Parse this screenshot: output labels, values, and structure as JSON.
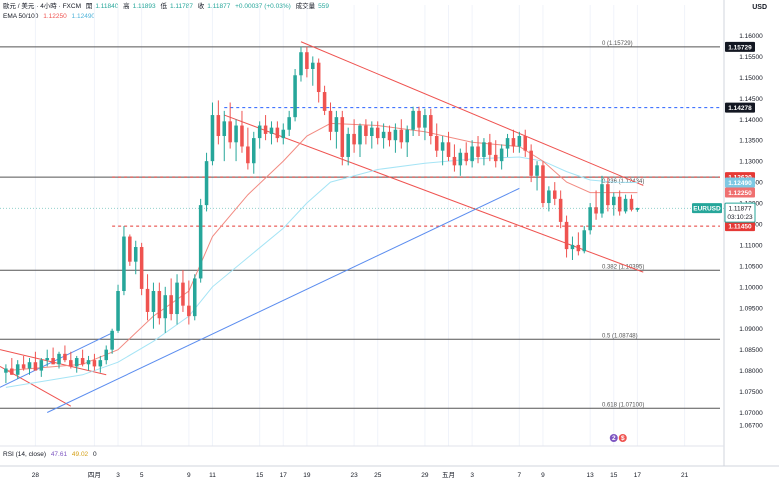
{
  "header": {
    "title": "歐元 / 美元 · 4小時 · FXCM",
    "open_label": "開",
    "open": "1.11840",
    "high_label": "高",
    "high": "1.11893",
    "low_label": "低",
    "low": "1.11787",
    "close_label": "收",
    "close": "1.11877",
    "change": "+0.00037 (+0.03%)",
    "volume_label": "成交量",
    "volume": "559",
    "ema_label": "EMA 50/100",
    "ema50": "1.12250",
    "ema100": "1.12490",
    "rsi_label": "RSI (14, close)",
    "rsi_value": "47.61",
    "rsi_ma": "49.02",
    "rsi_extra": "0",
    "currency": "USD"
  },
  "colors": {
    "up": "#26a69a",
    "down": "#ef5350",
    "ema50": "#f28b82",
    "ema100": "#a5e4f5",
    "channel": "#ef5350",
    "trend": "#5b8def",
    "blue_dash": "#2962ff",
    "red_dash": "#e53935",
    "price_badge": "#131722"
  },
  "chart_data": {
    "type": "candlestick",
    "symbol": "EURUSD",
    "timeframe": "4H",
    "ylim": [
      1.062,
      1.1625
    ],
    "y_ticks": [
      "1.16000",
      "1.15500",
      "1.15000",
      "1.14500",
      "1.14000",
      "1.13500",
      "1.13000",
      "1.12500",
      "1.12000",
      "1.11500",
      "1.11000",
      "1.10500",
      "1.10000",
      "1.09500",
      "1.09000",
      "1.08500",
      "1.08000",
      "1.07500",
      "1.07000",
      "1.06700"
    ],
    "y_tick_values": [
      1.16,
      1.155,
      1.15,
      1.145,
      1.14,
      1.135,
      1.13,
      1.125,
      1.12,
      1.115,
      1.11,
      1.105,
      1.1,
      1.095,
      1.09,
      1.085,
      1.08,
      1.075,
      1.07,
      1.067
    ],
    "x_ticks": [
      "28",
      "四月",
      "3",
      "5",
      "9",
      "11",
      "15",
      "17",
      "19",
      "23",
      "25",
      "29",
      "五月",
      "3",
      "7",
      "9",
      "13",
      "15",
      "17",
      "21"
    ],
    "x_tick_days": [
      -4,
      1,
      3,
      5,
      9,
      11,
      15,
      17,
      19,
      23,
      25,
      29,
      31,
      33,
      37,
      39,
      43,
      45,
      47,
      51
    ],
    "candles": [
      {
        "d": -6.5,
        "o": 1.0795,
        "h": 1.0815,
        "l": 1.077,
        "c": 1.0805
      },
      {
        "d": -6.0,
        "o": 1.0805,
        "h": 1.083,
        "l": 1.079,
        "c": 1.079
      },
      {
        "d": -5.5,
        "o": 1.079,
        "h": 1.0825,
        "l": 1.078,
        "c": 1.0815
      },
      {
        "d": -5.0,
        "o": 1.0815,
        "h": 1.0835,
        "l": 1.08,
        "c": 1.0805
      },
      {
        "d": -4.5,
        "o": 1.0805,
        "h": 1.083,
        "l": 1.079,
        "c": 1.082
      },
      {
        "d": -4.0,
        "o": 1.082,
        "h": 1.0845,
        "l": 1.081,
        "c": 1.08
      },
      {
        "d": -3.5,
        "o": 1.08,
        "h": 1.083,
        "l": 1.0785,
        "c": 1.0825
      },
      {
        "d": -3.0,
        "o": 1.0825,
        "h": 1.085,
        "l": 1.081,
        "c": 1.083
      },
      {
        "d": -2.5,
        "o": 1.083,
        "h": 1.0855,
        "l": 1.0815,
        "c": 1.0815
      },
      {
        "d": -2.0,
        "o": 1.0815,
        "h": 1.0845,
        "l": 1.0805,
        "c": 1.084
      },
      {
        "d": -1.5,
        "o": 1.084,
        "h": 1.086,
        "l": 1.082,
        "c": 1.0825
      },
      {
        "d": -1.0,
        "o": 1.0825,
        "h": 1.0845,
        "l": 1.0805,
        "c": 1.081
      },
      {
        "d": -0.5,
        "o": 1.081,
        "h": 1.0835,
        "l": 1.0795,
        "c": 1.083
      },
      {
        "d": 0.0,
        "o": 1.083,
        "h": 1.085,
        "l": 1.081,
        "c": 1.0815
      },
      {
        "d": 0.5,
        "o": 1.0815,
        "h": 1.0835,
        "l": 1.08,
        "c": 1.0825
      },
      {
        "d": 1.0,
        "o": 1.0825,
        "h": 1.084,
        "l": 1.08,
        "c": 1.081
      },
      {
        "d": 1.5,
        "o": 1.081,
        "h": 1.0835,
        "l": 1.0795,
        "c": 1.0825
      },
      {
        "d": 2.0,
        "o": 1.0825,
        "h": 1.086,
        "l": 1.0815,
        "c": 1.085
      },
      {
        "d": 2.5,
        "o": 1.085,
        "h": 1.09,
        "l": 1.084,
        "c": 1.0895
      },
      {
        "d": 3.0,
        "o": 1.0895,
        "h": 1.1005,
        "l": 1.089,
        "c": 1.099
      },
      {
        "d": 3.5,
        "o": 1.099,
        "h": 1.1145,
        "l": 1.098,
        "c": 1.112
      },
      {
        "d": 4.0,
        "o": 1.112,
        "h": 1.1125,
        "l": 1.105,
        "c": 1.106
      },
      {
        "d": 4.5,
        "o": 1.106,
        "h": 1.111,
        "l": 1.103,
        "c": 1.1095
      },
      {
        "d": 5.0,
        "o": 1.1095,
        "h": 1.1105,
        "l": 1.098,
        "c": 1.0995
      },
      {
        "d": 5.5,
        "o": 1.0995,
        "h": 1.103,
        "l": 1.092,
        "c": 1.094
      },
      {
        "d": 6.0,
        "o": 1.094,
        "h": 1.101,
        "l": 1.09,
        "c": 1.099
      },
      {
        "d": 6.5,
        "o": 1.099,
        "h": 1.101,
        "l": 1.091,
        "c": 1.0925
      },
      {
        "d": 7.0,
        "o": 1.0925,
        "h": 1.1,
        "l": 1.089,
        "c": 1.098
      },
      {
        "d": 7.5,
        "o": 1.098,
        "h": 1.102,
        "l": 1.092,
        "c": 1.0935
      },
      {
        "d": 8.0,
        "o": 1.0935,
        "h": 1.103,
        "l": 1.091,
        "c": 1.101
      },
      {
        "d": 8.5,
        "o": 1.101,
        "h": 1.104,
        "l": 1.094,
        "c": 1.0955
      },
      {
        "d": 9.0,
        "o": 1.0955,
        "h": 1.1015,
        "l": 1.091,
        "c": 1.093
      },
      {
        "d": 9.5,
        "o": 1.093,
        "h": 1.103,
        "l": 1.092,
        "c": 1.102
      },
      {
        "d": 10.0,
        "o": 1.102,
        "h": 1.121,
        "l": 1.101,
        "c": 1.1195
      },
      {
        "d": 10.5,
        "o": 1.1195,
        "h": 1.132,
        "l": 1.118,
        "c": 1.13
      },
      {
        "d": 11.0,
        "o": 1.13,
        "h": 1.144,
        "l": 1.129,
        "c": 1.141
      },
      {
        "d": 11.5,
        "o": 1.141,
        "h": 1.1445,
        "l": 1.134,
        "c": 1.136
      },
      {
        "d": 12.0,
        "o": 1.136,
        "h": 1.142,
        "l": 1.13,
        "c": 1.1395
      },
      {
        "d": 12.5,
        "o": 1.1395,
        "h": 1.144,
        "l": 1.133,
        "c": 1.1345
      },
      {
        "d": 13.0,
        "o": 1.1345,
        "h": 1.14,
        "l": 1.13,
        "c": 1.1385
      },
      {
        "d": 13.5,
        "o": 1.1385,
        "h": 1.142,
        "l": 1.132,
        "c": 1.1335
      },
      {
        "d": 14.0,
        "o": 1.1335,
        "h": 1.138,
        "l": 1.128,
        "c": 1.1295
      },
      {
        "d": 14.5,
        "o": 1.1295,
        "h": 1.137,
        "l": 1.127,
        "c": 1.1355
      },
      {
        "d": 15.0,
        "o": 1.1355,
        "h": 1.1395,
        "l": 1.133,
        "c": 1.1385
      },
      {
        "d": 15.5,
        "o": 1.1385,
        "h": 1.141,
        "l": 1.135,
        "c": 1.1365
      },
      {
        "d": 16.0,
        "o": 1.1365,
        "h": 1.1395,
        "l": 1.134,
        "c": 1.138
      },
      {
        "d": 16.5,
        "o": 1.138,
        "h": 1.1395,
        "l": 1.1345,
        "c": 1.1355
      },
      {
        "d": 17.0,
        "o": 1.1355,
        "h": 1.139,
        "l": 1.134,
        "c": 1.1375
      },
      {
        "d": 17.5,
        "o": 1.1375,
        "h": 1.142,
        "l": 1.136,
        "c": 1.1405
      },
      {
        "d": 18.0,
        "o": 1.1405,
        "h": 1.152,
        "l": 1.1395,
        "c": 1.1505
      },
      {
        "d": 18.5,
        "o": 1.1505,
        "h": 1.1573,
        "l": 1.149,
        "c": 1.156
      },
      {
        "d": 19.0,
        "o": 1.156,
        "h": 1.1573,
        "l": 1.15,
        "c": 1.152
      },
      {
        "d": 19.5,
        "o": 1.152,
        "h": 1.155,
        "l": 1.148,
        "c": 1.1535
      },
      {
        "d": 20.0,
        "o": 1.1535,
        "h": 1.1545,
        "l": 1.144,
        "c": 1.1465
      },
      {
        "d": 20.5,
        "o": 1.1465,
        "h": 1.148,
        "l": 1.141,
        "c": 1.142
      },
      {
        "d": 21.0,
        "o": 1.142,
        "h": 1.144,
        "l": 1.135,
        "c": 1.137
      },
      {
        "d": 21.5,
        "o": 1.137,
        "h": 1.142,
        "l": 1.133,
        "c": 1.1405
      },
      {
        "d": 22.0,
        "o": 1.1405,
        "h": 1.142,
        "l": 1.129,
        "c": 1.131
      },
      {
        "d": 22.5,
        "o": 1.131,
        "h": 1.138,
        "l": 1.129,
        "c": 1.1365
      },
      {
        "d": 23.0,
        "o": 1.1365,
        "h": 1.14,
        "l": 1.132,
        "c": 1.134
      },
      {
        "d": 23.5,
        "o": 1.134,
        "h": 1.139,
        "l": 1.131,
        "c": 1.1385
      },
      {
        "d": 24.0,
        "o": 1.1385,
        "h": 1.14,
        "l": 1.134,
        "c": 1.136
      },
      {
        "d": 24.5,
        "o": 1.136,
        "h": 1.1395,
        "l": 1.133,
        "c": 1.138
      },
      {
        "d": 25.0,
        "o": 1.138,
        "h": 1.1395,
        "l": 1.134,
        "c": 1.1355
      },
      {
        "d": 25.5,
        "o": 1.1355,
        "h": 1.139,
        "l": 1.133,
        "c": 1.137
      },
      {
        "d": 26.0,
        "o": 1.137,
        "h": 1.1385,
        "l": 1.1335,
        "c": 1.135
      },
      {
        "d": 26.5,
        "o": 1.135,
        "h": 1.139,
        "l": 1.132,
        "c": 1.1375
      },
      {
        "d": 27.0,
        "o": 1.1375,
        "h": 1.14,
        "l": 1.133,
        "c": 1.1345
      },
      {
        "d": 27.5,
        "o": 1.1345,
        "h": 1.1385,
        "l": 1.131,
        "c": 1.1375
      },
      {
        "d": 28.0,
        "o": 1.1375,
        "h": 1.143,
        "l": 1.136,
        "c": 1.142
      },
      {
        "d": 28.5,
        "o": 1.142,
        "h": 1.143,
        "l": 1.136,
        "c": 1.138
      },
      {
        "d": 29.0,
        "o": 1.138,
        "h": 1.1425,
        "l": 1.135,
        "c": 1.141
      },
      {
        "d": 29.5,
        "o": 1.141,
        "h": 1.1425,
        "l": 1.134,
        "c": 1.136
      },
      {
        "d": 30.0,
        "o": 1.136,
        "h": 1.139,
        "l": 1.131,
        "c": 1.1325
      },
      {
        "d": 30.5,
        "o": 1.1325,
        "h": 1.136,
        "l": 1.129,
        "c": 1.1345
      },
      {
        "d": 31.0,
        "o": 1.1345,
        "h": 1.137,
        "l": 1.13,
        "c": 1.131
      },
      {
        "d": 31.5,
        "o": 1.131,
        "h": 1.134,
        "l": 1.1275,
        "c": 1.129
      },
      {
        "d": 32.0,
        "o": 1.129,
        "h": 1.133,
        "l": 1.1265,
        "c": 1.132
      },
      {
        "d": 32.5,
        "o": 1.132,
        "h": 1.1345,
        "l": 1.129,
        "c": 1.13
      },
      {
        "d": 33.0,
        "o": 1.13,
        "h": 1.135,
        "l": 1.1285,
        "c": 1.1335
      },
      {
        "d": 33.5,
        "o": 1.1335,
        "h": 1.136,
        "l": 1.1295,
        "c": 1.131
      },
      {
        "d": 34.0,
        "o": 1.131,
        "h": 1.1355,
        "l": 1.129,
        "c": 1.1345
      },
      {
        "d": 34.5,
        "o": 1.1345,
        "h": 1.1365,
        "l": 1.13,
        "c": 1.1315
      },
      {
        "d": 35.0,
        "o": 1.1315,
        "h": 1.135,
        "l": 1.1285,
        "c": 1.13
      },
      {
        "d": 35.5,
        "o": 1.13,
        "h": 1.134,
        "l": 1.128,
        "c": 1.133
      },
      {
        "d": 36.0,
        "o": 1.133,
        "h": 1.1365,
        "l": 1.131,
        "c": 1.1355
      },
      {
        "d": 36.5,
        "o": 1.1355,
        "h": 1.1375,
        "l": 1.132,
        "c": 1.1335
      },
      {
        "d": 37.0,
        "o": 1.1335,
        "h": 1.137,
        "l": 1.132,
        "c": 1.136
      },
      {
        "d": 37.5,
        "o": 1.136,
        "h": 1.1375,
        "l": 1.131,
        "c": 1.1325
      },
      {
        "d": 38.0,
        "o": 1.1325,
        "h": 1.134,
        "l": 1.125,
        "c": 1.1265
      },
      {
        "d": 38.5,
        "o": 1.1265,
        "h": 1.13,
        "l": 1.123,
        "c": 1.129
      },
      {
        "d": 39.0,
        "o": 1.129,
        "h": 1.13,
        "l": 1.119,
        "c": 1.12
      },
      {
        "d": 39.5,
        "o": 1.12,
        "h": 1.124,
        "l": 1.118,
        "c": 1.123
      },
      {
        "d": 40.0,
        "o": 1.123,
        "h": 1.125,
        "l": 1.1195,
        "c": 1.121
      },
      {
        "d": 40.5,
        "o": 1.121,
        "h": 1.123,
        "l": 1.114,
        "c": 1.1155
      },
      {
        "d": 41.0,
        "o": 1.1155,
        "h": 1.117,
        "l": 1.107,
        "c": 1.109
      },
      {
        "d": 41.5,
        "o": 1.109,
        "h": 1.112,
        "l": 1.1064,
        "c": 1.11
      },
      {
        "d": 42.0,
        "o": 1.11,
        "h": 1.113,
        "l": 1.1075,
        "c": 1.1085
      },
      {
        "d": 42.5,
        "o": 1.1085,
        "h": 1.1145,
        "l": 1.108,
        "c": 1.1135
      },
      {
        "d": 43.0,
        "o": 1.1135,
        "h": 1.12,
        "l": 1.1125,
        "c": 1.119
      },
      {
        "d": 43.5,
        "o": 1.119,
        "h": 1.123,
        "l": 1.116,
        "c": 1.1175
      },
      {
        "d": 44.0,
        "o": 1.1175,
        "h": 1.1265,
        "l": 1.1165,
        "c": 1.1245
      },
      {
        "d": 44.5,
        "o": 1.1245,
        "h": 1.1262,
        "l": 1.118,
        "c": 1.1195
      },
      {
        "d": 45.0,
        "o": 1.1195,
        "h": 1.1225,
        "l": 1.117,
        "c": 1.1215
      },
      {
        "d": 45.5,
        "o": 1.1215,
        "h": 1.123,
        "l": 1.117,
        "c": 1.118
      },
      {
        "d": 46.0,
        "o": 1.118,
        "h": 1.122,
        "l": 1.1175,
        "c": 1.121
      },
      {
        "d": 46.5,
        "o": 1.121,
        "h": 1.122,
        "l": 1.118,
        "c": 1.1184
      },
      {
        "d": 47.0,
        "o": 1.1184,
        "h": 1.1189,
        "l": 1.1179,
        "c": 1.1188
      }
    ],
    "ema50_line": [
      [
        -6.5,
        1.08
      ],
      [
        0,
        1.0815
      ],
      [
        3,
        1.085
      ],
      [
        6,
        1.093
      ],
      [
        9,
        1.099
      ],
      [
        11,
        1.112
      ],
      [
        14,
        1.122
      ],
      [
        17,
        1.13
      ],
      [
        19,
        1.136
      ],
      [
        21,
        1.139
      ],
      [
        25,
        1.1385
      ],
      [
        29,
        1.137
      ],
      [
        33,
        1.1345
      ],
      [
        37,
        1.1335
      ],
      [
        39,
        1.13
      ],
      [
        41,
        1.125
      ],
      [
        43,
        1.1225
      ],
      [
        45,
        1.1225
      ],
      [
        47,
        1.1225
      ]
    ],
    "ema100_line": [
      [
        -6.5,
        1.076
      ],
      [
        0,
        1.079
      ],
      [
        3,
        1.082
      ],
      [
        6,
        1.087
      ],
      [
        9,
        1.093
      ],
      [
        11,
        1.1
      ],
      [
        14,
        1.107
      ],
      [
        17,
        1.114
      ],
      [
        19,
        1.12
      ],
      [
        21,
        1.125
      ],
      [
        25,
        1.128
      ],
      [
        29,
        1.1295
      ],
      [
        33,
        1.1305
      ],
      [
        37,
        1.131
      ],
      [
        39,
        1.13
      ],
      [
        41,
        1.1275
      ],
      [
        43,
        1.1255
      ],
      [
        45,
        1.125
      ],
      [
        47,
        1.1249
      ]
    ],
    "horizontal_levels": [
      {
        "price": 1.15729,
        "label": "0 (1.15729)",
        "style": "solid"
      },
      {
        "price": 1.1262,
        "style": "solid"
      },
      {
        "price": 1.10395,
        "label": "0.382 (1.10395)",
        "style": "solid"
      },
      {
        "price": 1.08748,
        "label": "0.5 (1.08748)",
        "style": "solid"
      },
      {
        "price": 1.071,
        "label": "0.618 (1.07100)",
        "style": "solid"
      },
      {
        "price": 1.14278,
        "style": "blue-dash"
      },
      {
        "price": 1.1262,
        "style": "red-dash"
      },
      {
        "price": 1.1145,
        "style": "red-dash"
      }
    ],
    "fib_mid_label": "0.236 (1.12434)",
    "trendlines": [
      {
        "color": "channel",
        "points": [
          [
            18.5,
            1.1585
          ],
          [
            47.5,
            1.1242
          ]
        ]
      },
      {
        "color": "channel",
        "points": [
          [
            12.0,
            1.141
          ],
          [
            47.5,
            1.1035
          ]
        ]
      },
      {
        "color": "channel",
        "points": [
          [
            -7,
            1.085
          ],
          [
            2,
            1.079
          ]
        ]
      },
      {
        "color": "channel",
        "points": [
          [
            -7,
            1.081
          ],
          [
            -1,
            1.0715
          ]
        ]
      },
      {
        "color": "trend",
        "points": [
          [
            -7,
            1.076
          ],
          [
            2.5,
            1.089
          ]
        ]
      },
      {
        "color": "trend",
        "points": [
          [
            -3,
            1.07
          ],
          [
            37,
            1.1235
          ]
        ]
      }
    ],
    "price_badges": [
      {
        "price": 1.15729,
        "text": "1.15729",
        "color": "#131722"
      },
      {
        "price": 1.14278,
        "text": "1.14278",
        "color": "#131722"
      },
      {
        "price": 1.1262,
        "text": "1.12620",
        "color": "#e53935"
      },
      {
        "price": 1.1249,
        "text": "1.12490",
        "color": "#7ec8e3"
      },
      {
        "price": 1.1225,
        "text": "1.12250",
        "color": "#ef7070"
      },
      {
        "price": 1.1145,
        "text": "1.11450",
        "color": "#e53935"
      }
    ],
    "current_price": {
      "price": 1.11877,
      "symbol": "EURUSD",
      "text": "1.11877",
      "countdown": "03:10:23"
    },
    "rsi_markers": [
      "2",
      "$"
    ]
  }
}
